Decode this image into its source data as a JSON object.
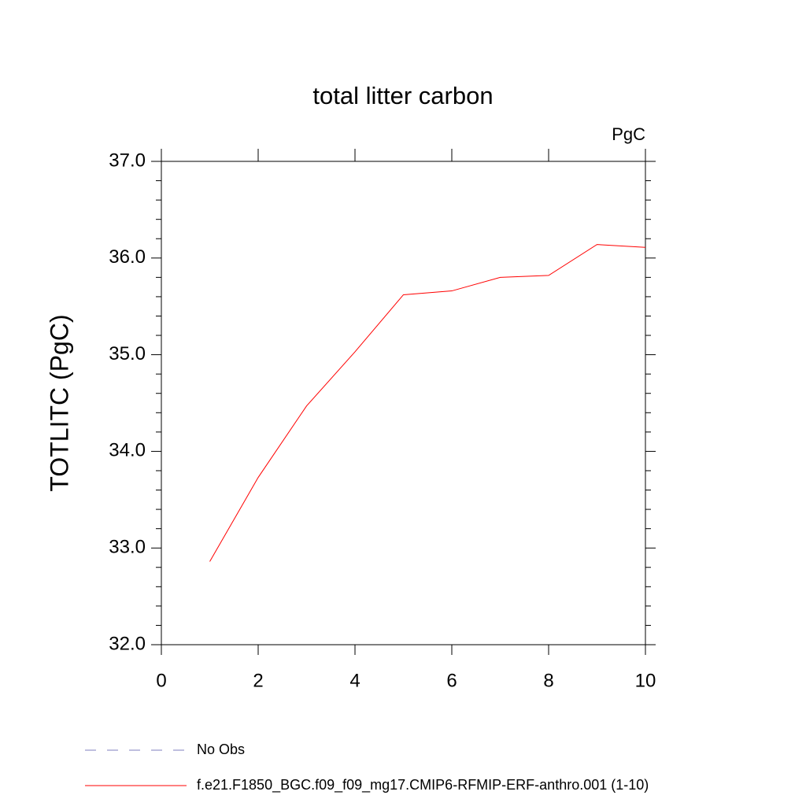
{
  "chart_data": {
    "type": "line",
    "title": "total litter carbon",
    "units": "PgC",
    "y_label": "TOTLITC  (PgC)",
    "x": [
      1,
      2,
      3,
      4,
      5,
      6,
      7,
      8,
      9,
      10
    ],
    "series": [
      {
        "name": "No Obs",
        "color": "#7f7fbf",
        "dashed": true,
        "values": [
          null,
          null,
          null,
          null,
          null,
          null,
          null,
          null,
          null,
          null
        ]
      },
      {
        "name": "f.e21.F1850_BGC.f09_f09_mg17.CMIP6-RFMIP-ERF-anthro.001 (1-10)",
        "color": "#ff0000",
        "dashed": false,
        "values": [
          32.86,
          33.73,
          34.47,
          35.03,
          35.62,
          35.66,
          35.8,
          35.82,
          36.14,
          36.11
        ]
      }
    ],
    "xlim": [
      0,
      10
    ],
    "xticks": [
      0,
      2,
      4,
      6,
      8,
      10
    ],
    "ylim": [
      32,
      37
    ],
    "yticks": [
      {
        "value": 32,
        "label": "32.0"
      },
      {
        "value": 33,
        "label": "33.0"
      },
      {
        "value": 34,
        "label": "34.0"
      },
      {
        "value": 35,
        "label": "35.0"
      },
      {
        "value": 36,
        "label": "36.0"
      },
      {
        "value": 37,
        "label": "37.0"
      }
    ]
  }
}
